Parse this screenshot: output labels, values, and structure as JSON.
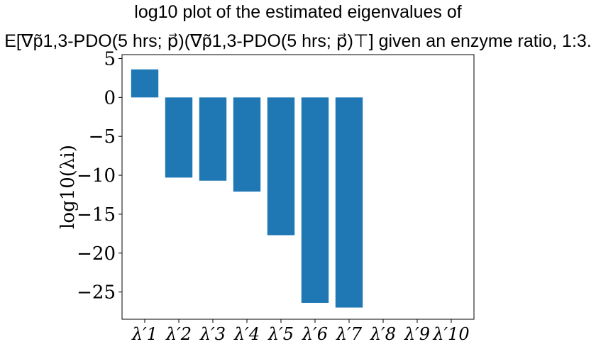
{
  "chart_data": {
    "type": "bar",
    "title_line1": "log10 plot of the estimated eigenvalues of",
    "title_line2": "E[∇p̃1,3-PDO(5 hrs; p⃗)(∇p̃1,3-PDO(5 hrs; p⃗)⊤] given an enzyme ratio, 1:3.",
    "xlabel": "",
    "ylabel": "log10(λi)",
    "categories": [
      "λ′1",
      "λ′2",
      "λ′3",
      "λ′4",
      "λ′5",
      "λ′6",
      "λ′7",
      "λ′8",
      "λ′9",
      "λ′10"
    ],
    "values": [
      3.6,
      -10.3,
      -10.7,
      -12.1,
      -17.7,
      -26.4,
      -27.0,
      null,
      null,
      null
    ],
    "ylim": [
      -28.5,
      5.5
    ],
    "yticks": [
      5,
      0,
      -5,
      -10,
      -15,
      -20,
      -25
    ],
    "ytick_labels": [
      "5",
      "0",
      "−5",
      "−10",
      "−15",
      "−20",
      "−25"
    ],
    "bar_color": "#1f77b4",
    "grid": false
  }
}
